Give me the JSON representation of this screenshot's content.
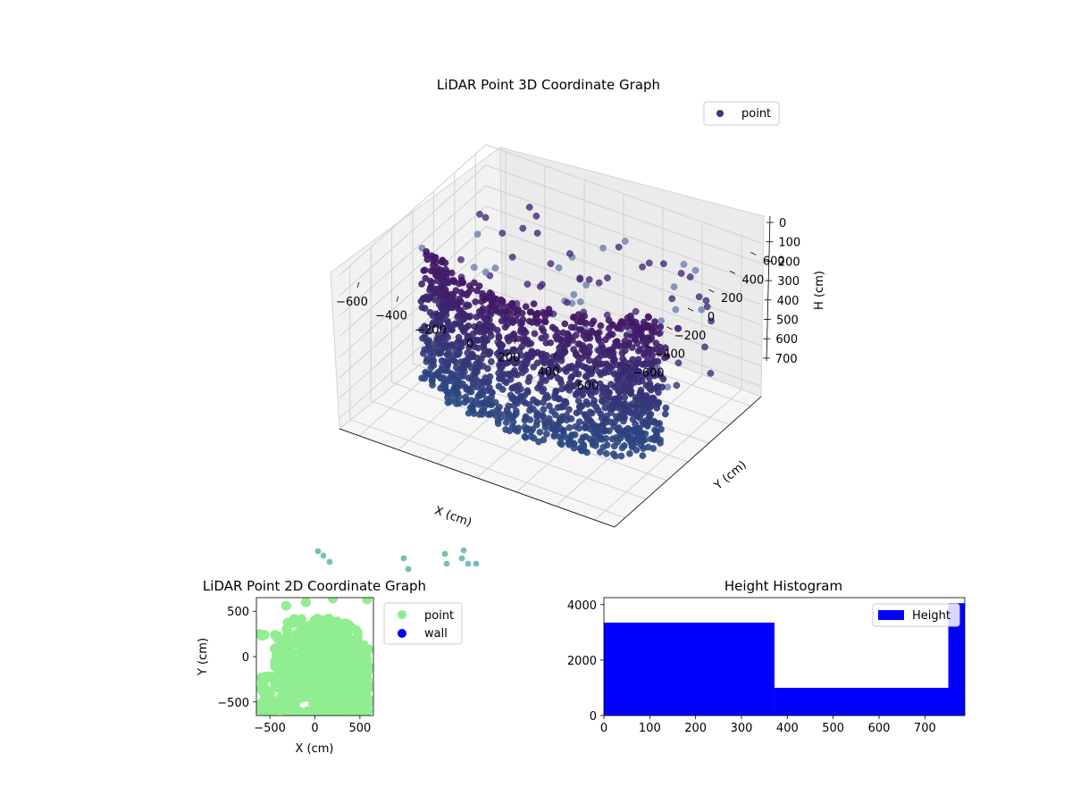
{
  "chart_data": [
    {
      "type": "scatter3d",
      "title": "LiDAR Point 3D Coordinate Graph",
      "xlabel": "X (cm)",
      "ylabel": "Y (cm)",
      "zlabel": "H (cm)",
      "xlim": [
        -700,
        700
      ],
      "ylim": [
        -700,
        700
      ],
      "zlim": [
        0,
        750
      ],
      "xticks": [
        -600,
        -400,
        -200,
        0,
        200,
        400,
        600
      ],
      "yticks": [
        -600,
        -400,
        -200,
        0,
        200,
        400,
        600
      ],
      "zticks": [
        0,
        100,
        200,
        300,
        400,
        500,
        600,
        700
      ],
      "z_inverted": true,
      "grid": true,
      "legend": {
        "placement": "upper-right",
        "entries": [
          {
            "label": "point",
            "color": "#48307e"
          }
        ]
      },
      "colormap": "viridis",
      "description_of_points": "dense wall of points roughly on an arc (y approx -500 to 200) spanning H 0-700, plus scattered points near top plane"
    },
    {
      "type": "scatter",
      "title": "LiDAR Point 2D Coordinate Graph",
      "xlabel": "X (cm)",
      "ylabel": "Y (cm)",
      "xlim": [
        -650,
        650
      ],
      "ylim": [
        -650,
        650
      ],
      "xticks": [
        -500,
        0,
        500
      ],
      "yticks": [
        -500,
        0,
        500
      ],
      "legend": {
        "placement": "outside-right",
        "entries": [
          {
            "label": "point",
            "color": "#90ee90"
          },
          {
            "label": "wall",
            "color": "#0000ff"
          }
        ]
      }
    },
    {
      "type": "bar",
      "title": "Height Histogram",
      "bins": [
        {
          "x0": 0,
          "x1": 372,
          "count": 3350
        },
        {
          "x0": 372,
          "x1": 751,
          "count": 1000
        },
        {
          "x0": 751,
          "x1": 787,
          "count": 4050
        }
      ],
      "xlim": [
        0,
        787
      ],
      "ylim": [
        0,
        4250
      ],
      "xticks": [
        0,
        100,
        200,
        300,
        400,
        500,
        600,
        700
      ],
      "yticks": [
        0,
        2000,
        4000
      ],
      "bar_color": "#0000ff",
      "legend": {
        "placement": "upper-right",
        "entries": [
          {
            "label": "Height",
            "color": "#0000ff"
          }
        ]
      }
    }
  ]
}
